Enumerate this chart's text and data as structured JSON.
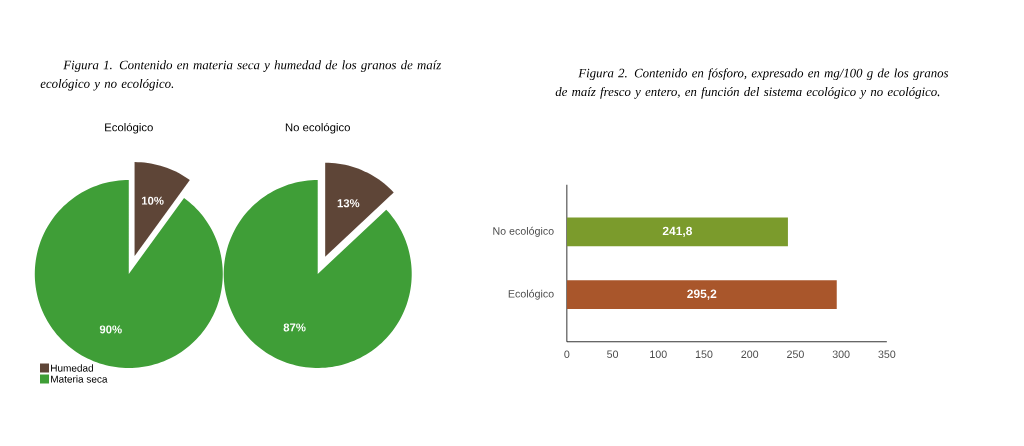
{
  "chart_data": [
    {
      "type": "pie",
      "title": "Figura 1. Contenido en materia seca y humedad de los granos de maíz ecológico y no ecológico.",
      "subtitle": "Ecológico",
      "categories": [
        "Humedad",
        "Materia seca"
      ],
      "values": [
        10,
        90
      ],
      "colors": [
        "#5e4537",
        "#3f9e37"
      ],
      "value_labels": [
        "10%",
        "90%"
      ],
      "legend": "bottom left"
    },
    {
      "type": "pie",
      "title": "No ecológico",
      "categories": [
        null,
        null
      ],
      "values": [
        13,
        87
      ],
      "colors": [
        "#5e4537",
        "#3f9e37"
      ],
      "value_labels": [
        "13%",
        "87%"
      ]
    },
    {
      "type": "bar",
      "orientation": "horizontal",
      "title": "Figura 2. Contenido en fósforo, expresado en mg/100 g de los granos de maíz fresco y entero, en función del sistema ecológico y no ecológico.",
      "categories": [
        "No ecológico",
        "Ecológico"
      ],
      "values": [
        241.8,
        295.2
      ],
      "colors": [
        "#7b9b2c",
        "#a9562b"
      ],
      "value_labels": [
        "241,8",
        "295,2"
      ],
      "xlim": [
        0,
        350
      ],
      "xticks": [
        0,
        50,
        100,
        150,
        200,
        250,
        300,
        350
      ]
    }
  ]
}
